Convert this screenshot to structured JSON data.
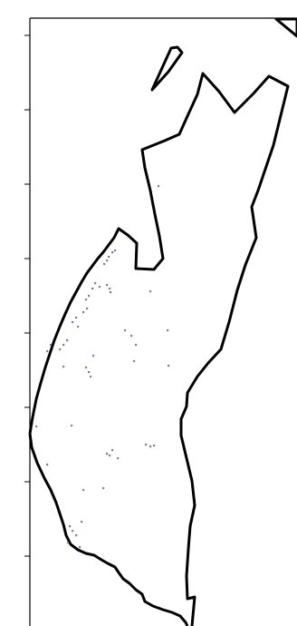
{
  "map": {
    "type": "outline-map-with-points",
    "axes": {
      "left_ticks": 8,
      "tick_labels_visible": false,
      "frame_edges": [
        "top",
        "left"
      ]
    },
    "colors": {
      "outline": "#000000",
      "background": "#ffffff",
      "point_blue": "#5a5fb0",
      "point_red": "#b0524a",
      "point_gray": "#6f6f6f"
    },
    "point_categories": [
      "blue",
      "red",
      "gray"
    ]
  }
}
